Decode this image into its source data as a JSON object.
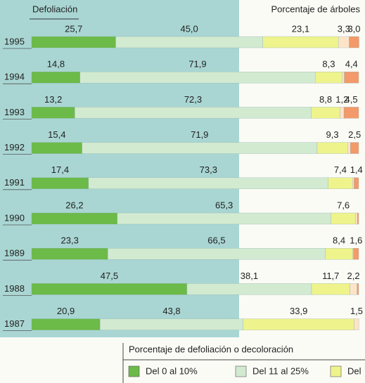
{
  "chart_data": {
    "type": "stacked-bar",
    "title": "Defoliación",
    "subtitle": "Porcentaje de árboles",
    "legend_title": "Porcentaje de defoliación o decoloración",
    "categories": [
      "1995",
      "1994",
      "1993",
      "1992",
      "1991",
      "1990",
      "1989",
      "1988",
      "1987"
    ],
    "xlim": [
      0,
      100
    ],
    "series": [
      {
        "name": "Del 0 al 10%",
        "color": "#6cba48",
        "values": [
          25.7,
          14.8,
          13.2,
          15.4,
          17.4,
          26.2,
          23.3,
          47.5,
          20.9
        ],
        "value_labels": [
          "25,7",
          "14,8",
          "13,2",
          "15,4",
          "17,4",
          "26,2",
          "23,3",
          "47,5",
          "20,9"
        ]
      },
      {
        "name": "Del 11 al 25%",
        "color": "#d2ead0",
        "values": [
          45.0,
          71.9,
          72.3,
          71.9,
          73.3,
          65.3,
          66.5,
          38.1,
          43.8
        ],
        "value_labels": [
          "45,0",
          "71,9",
          "72,3",
          "71,9",
          "73,3",
          "65,3",
          "66,5",
          "38,1",
          "43,8"
        ]
      },
      {
        "name": "Del",
        "color": "#eef38c",
        "values": [
          23.1,
          8.3,
          8.8,
          9.3,
          7.4,
          7.6,
          8.4,
          11.7,
          33.9
        ],
        "value_labels": [
          "23,1",
          "8,3",
          "8,8",
          "9,3",
          "7,4",
          "7,6",
          "8,4",
          "11,7",
          "33,9"
        ]
      },
      {
        "color": "#fde4c8",
        "values": [
          3.3,
          0.6,
          1.2,
          0.9,
          0.5,
          0.5,
          0.2,
          2.2,
          1.5
        ],
        "value_labels": [
          "3,3",
          null,
          "1,2",
          null,
          null,
          null,
          null,
          "2,2",
          "1,5"
        ]
      },
      {
        "color": "#f3996a",
        "values": [
          3.0,
          4.4,
          4.5,
          2.5,
          1.4,
          0.4,
          1.6,
          0.5,
          0
        ],
        "value_labels": [
          "3,0",
          "4,4",
          "4,5",
          "2,5",
          "1,4",
          null,
          "1,6",
          null,
          null
        ]
      }
    ]
  }
}
